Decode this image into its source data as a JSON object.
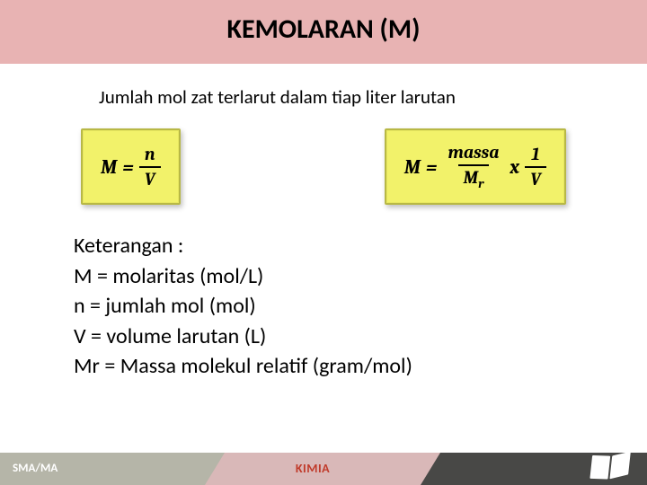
{
  "header": {
    "title": "KEMOLARAN (M)"
  },
  "subtitle": "Jumlah mol zat terlarut dalam tiap liter larutan",
  "formula1": {
    "lhs": "M",
    "num": "n",
    "den": "V"
  },
  "formula2": {
    "lhs": "M",
    "num1": "massa",
    "den1": "M",
    "den1_sub": "r",
    "mult": "x",
    "num2": "1",
    "den2": "V"
  },
  "legend": {
    "heading": "Keterangan :",
    "l1": "M = molaritas (mol/L)",
    "l2": "n = jumlah mol (mol)",
    "l3": "V = volume larutan (L)",
    "l4": "Mr = Massa molekul relatif (gram/mol)"
  },
  "footer": {
    "left": "SMA/MA",
    "mid": "KIMIA"
  },
  "colors": {
    "header_band": "#e8b3b3",
    "formula_bg": "#f2f26a",
    "formula_border": "#b8b846",
    "footer_left": "#b5b5a8",
    "footer_mid": "#d9b8b8",
    "footer_right": "#484846",
    "footer_mid_text": "#c03a2a"
  }
}
